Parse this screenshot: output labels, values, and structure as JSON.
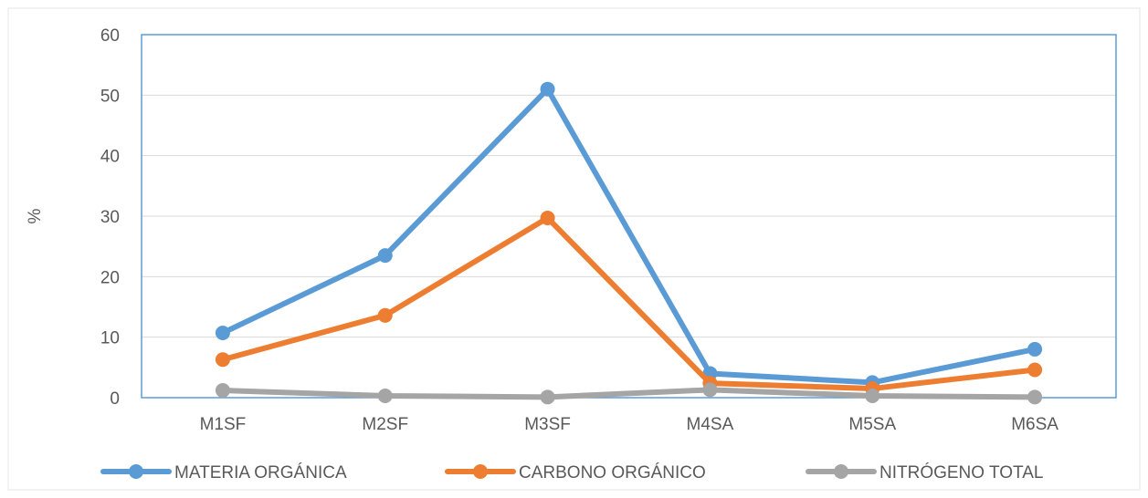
{
  "chart_data": {
    "type": "line",
    "title": "",
    "xlabel": "",
    "ylabel": "%",
    "ylim": [
      0,
      60
    ],
    "yticks": [
      0,
      10,
      20,
      30,
      40,
      50,
      60
    ],
    "grid": true,
    "legend_position": "bottom",
    "categories": [
      "M1SF",
      "M2SF",
      "M3SF",
      "M4SA",
      "M5SA",
      "M6SA"
    ],
    "series": [
      {
        "name": "MATERIA ORGÁNICA",
        "color": "#5b9bd5",
        "values": [
          10.7,
          23.5,
          51.0,
          4.0,
          2.5,
          8.0
        ]
      },
      {
        "name": "CARBONO ORGÁNICO",
        "color": "#ed7d31",
        "values": [
          6.3,
          13.6,
          29.7,
          2.4,
          1.5,
          4.6
        ]
      },
      {
        "name": "NITRÓGENO TOTAL",
        "color": "#a5a5a5",
        "values": [
          1.2,
          0.3,
          0.1,
          1.3,
          0.3,
          0.1
        ]
      }
    ]
  }
}
